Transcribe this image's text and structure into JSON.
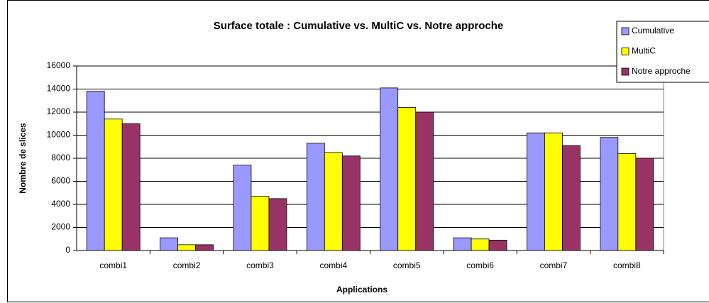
{
  "chart_data": {
    "type": "bar",
    "title": "Surface totale : Cumulative vs. MultiC vs. Notre approche",
    "x_label": "Applications",
    "y_label": "Nombre de slices",
    "categories": [
      "combi1",
      "combi2",
      "combi3",
      "combi4",
      "combi5",
      "combi6",
      "combi7",
      "combi8"
    ],
    "series": [
      {
        "name": "Cumulative",
        "color": "#9999ff",
        "values": [
          13800,
          1100,
          7400,
          9300,
          14100,
          1100,
          10200,
          9800
        ]
      },
      {
        "name": "MultiC",
        "color": "#ffff00",
        "values": [
          11400,
          500,
          4700,
          8500,
          12400,
          1000,
          10200,
          8400
        ]
      },
      {
        "name": "Notre approche",
        "color": "#993366",
        "values": [
          11000,
          500,
          4500,
          8200,
          12000,
          900,
          9100,
          8000
        ]
      }
    ],
    "ylim": [
      0,
      16000
    ],
    "yticks": [
      0,
      2000,
      4000,
      6000,
      8000,
      10000,
      12000,
      14000,
      16000
    ],
    "grid": true,
    "legend": "top-right"
  }
}
